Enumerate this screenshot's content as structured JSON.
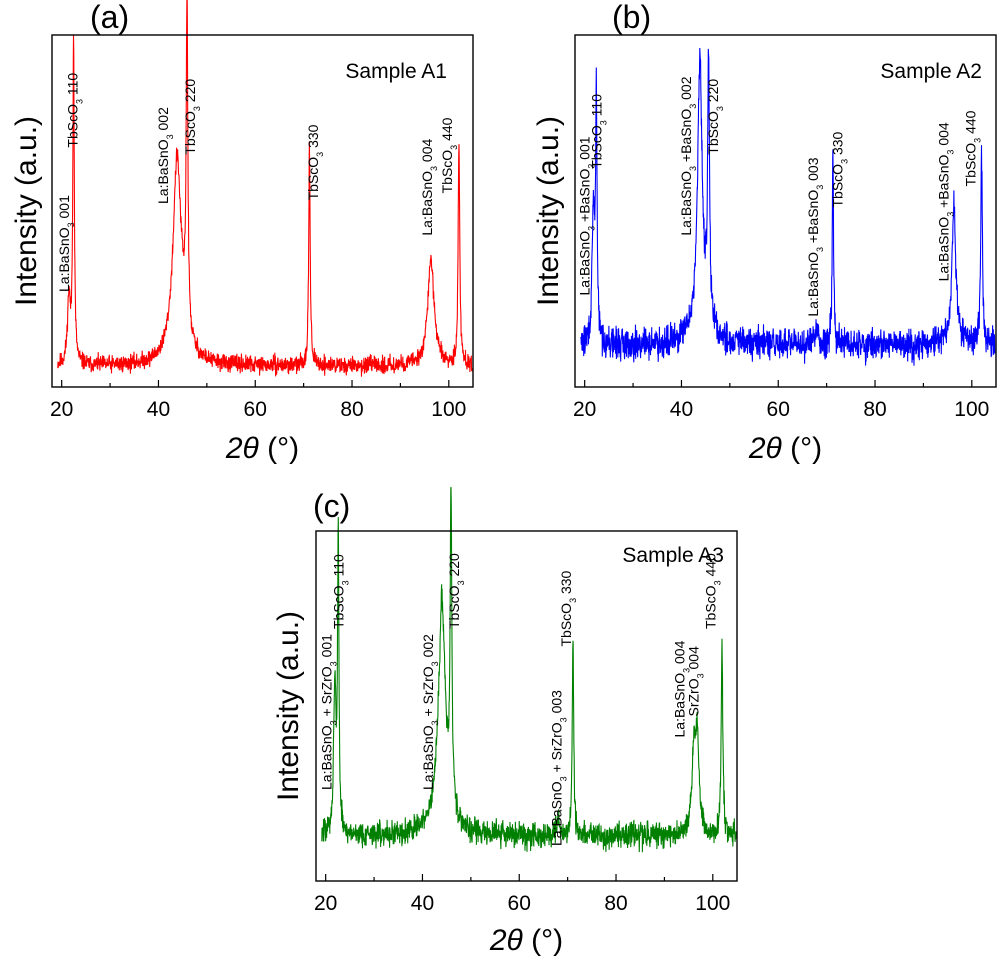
{
  "chart_data": [
    {
      "type": "line",
      "panel_tag": "(a)",
      "sample_label": "Sample A1",
      "color": "#ff0000",
      "xlabel": "2θ (°)",
      "xlabel_italic": "2θ",
      "xlabel_unit": " (°)",
      "ylabel": "Intensity (a.u.)",
      "xlim": [
        18,
        105
      ],
      "ylim": [
        0,
        1
      ],
      "xticks": [
        20,
        40,
        60,
        80,
        100
      ],
      "baseline": 0.06,
      "noise": 0.012,
      "seed": 11,
      "peaks": [
        {
          "center": 21.5,
          "height": 0.19,
          "width": 0.35
        },
        {
          "center": 22.45,
          "height": 0.92,
          "width": 0.18
        },
        {
          "center": 43.8,
          "height": 0.42,
          "width": 0.9
        },
        {
          "center": 44.2,
          "height": 0.18,
          "width": 1.6
        },
        {
          "center": 45.9,
          "height": 0.93,
          "width": 0.2
        },
        {
          "center": 71.2,
          "height": 0.63,
          "width": 0.18
        },
        {
          "center": 96.3,
          "height": 0.3,
          "width": 0.8
        },
        {
          "center": 102.1,
          "height": 0.63,
          "width": 0.2
        }
      ],
      "annotations": [
        {
          "main": "La:BaSnO",
          "sub": "3",
          "rest": " 001",
          "x": 21.5,
          "y": 0.27
        },
        {
          "main": "TbScO",
          "sub": "3",
          "rest": " 110",
          "x": 23.3,
          "y": 0.68
        },
        {
          "main": "La:BaSnO",
          "sub": "3",
          "rest": " 002",
          "x": 42.0,
          "y": 0.52
        },
        {
          "main": "TbScO",
          "sub": "3",
          "rest": " 220",
          "x": 47.5,
          "y": 0.66
        },
        {
          "main": "TbScO",
          "sub": "3",
          "rest": " 330",
          "x": 73.0,
          "y": 0.53
        },
        {
          "main": "La:BaSnO",
          "sub": "3",
          "rest": " 004",
          "x": 96.5,
          "y": 0.43
        },
        {
          "main": "TbScO",
          "sub": "3",
          "rest": " 440",
          "x": 100.7,
          "y": 0.55
        }
      ]
    },
    {
      "type": "line",
      "panel_tag": "(b)",
      "sample_label": "Sample A2",
      "color": "#0000ff",
      "xlabel": "2θ (°)",
      "xlabel_italic": "2θ",
      "xlabel_unit": " (°)",
      "ylabel": "Intensity (a.u.)",
      "xlim": [
        18,
        105
      ],
      "ylim": [
        0,
        1
      ],
      "xticks": [
        20,
        40,
        60,
        80,
        100
      ],
      "baseline": 0.12,
      "noise": 0.022,
      "seed": 29,
      "peaks": [
        {
          "center": 21.8,
          "height": 0.36,
          "width": 0.3
        },
        {
          "center": 22.4,
          "height": 0.7,
          "width": 0.18
        },
        {
          "center": 43.8,
          "height": 0.66,
          "width": 0.5
        },
        {
          "center": 44.0,
          "height": 0.15,
          "width": 1.5
        },
        {
          "center": 45.6,
          "height": 0.73,
          "width": 0.22
        },
        {
          "center": 67.9,
          "height": 0.06,
          "width": 0.3
        },
        {
          "center": 71.3,
          "height": 0.52,
          "width": 0.18
        },
        {
          "center": 96.3,
          "height": 0.39,
          "width": 0.5
        },
        {
          "center": 102.0,
          "height": 0.54,
          "width": 0.2
        }
      ],
      "annotations": [
        {
          "main": "La:BaSnO",
          "sub": "3",
          "rest": " +BaSnO",
          "sub2": "3",
          "rest2": " 001",
          "x": 21.0,
          "y": 0.26
        },
        {
          "main": "TbScO",
          "sub": "3",
          "rest": " 110",
          "x": 23.5,
          "y": 0.62
        },
        {
          "main": "La:BaSnO",
          "sub": "3",
          "rest": " +BaSnO",
          "sub2": "3",
          "rest2": " 002",
          "x": 42.0,
          "y": 0.43
        },
        {
          "main": "TbScO",
          "sub": "3",
          "rest": " 220",
          "x": 47.6,
          "y": 0.66
        },
        {
          "main": "La:BaSnO",
          "sub": "3",
          "rest": " +BaSnO",
          "sub2": "3",
          "rest2": " 003",
          "x": 68.2,
          "y": 0.2
        },
        {
          "main": "TbScO",
          "sub": "3",
          "rest": " 330",
          "x": 73.3,
          "y": 0.51
        },
        {
          "main": "La:BaSnO",
          "sub": "3",
          "rest": " +BaSnO",
          "sub2": "3",
          "rest2": " 004",
          "x": 95.2,
          "y": 0.3
        },
        {
          "main": "TbScO",
          "sub": "3",
          "rest": " 440",
          "x": 100.8,
          "y": 0.57
        }
      ]
    },
    {
      "type": "line",
      "panel_tag": "(c)",
      "sample_label": "Sample A3",
      "color": "#008000",
      "xlabel": "2θ (°)",
      "xlabel_italic": "2θ",
      "xlabel_unit": " (°)",
      "ylabel": "Intensity (a.u.)",
      "xlim": [
        18,
        105
      ],
      "ylim": [
        0,
        1
      ],
      "xticks": [
        20,
        40,
        60,
        80,
        100
      ],
      "baseline": 0.13,
      "noise": 0.018,
      "seed": 47,
      "peaks": [
        {
          "center": 21.9,
          "height": 0.43,
          "width": 0.3
        },
        {
          "center": 22.6,
          "height": 0.86,
          "width": 0.16
        },
        {
          "center": 44.0,
          "height": 0.5,
          "width": 0.7
        },
        {
          "center": 44.2,
          "height": 0.18,
          "width": 1.6
        },
        {
          "center": 45.9,
          "height": 0.87,
          "width": 0.2
        },
        {
          "center": 68.0,
          "height": 0.05,
          "width": 0.3
        },
        {
          "center": 71.1,
          "height": 0.56,
          "width": 0.18
        },
        {
          "center": 96.1,
          "height": 0.24,
          "width": 0.45
        },
        {
          "center": 96.8,
          "height": 0.25,
          "width": 0.4
        },
        {
          "center": 101.9,
          "height": 0.54,
          "width": 0.2
        }
      ],
      "annotations": [
        {
          "main": "La:BaSnO",
          "sub": "3",
          "rest": " + SrZrO",
          "sub2": "3",
          "rest2": " 001",
          "x": 21.2,
          "y": 0.26
        },
        {
          "main": "TbScO",
          "sub": "3",
          "rest": " 110",
          "x": 23.7,
          "y": 0.72
        },
        {
          "main": "La:BaSnO",
          "sub": "3",
          "rest": " + SrZrO",
          "sub2": "3",
          "rest2": " 002",
          "x": 42.2,
          "y": 0.26
        },
        {
          "main": "TbScO",
          "sub": "3",
          "rest": " 220",
          "x": 47.6,
          "y": 0.72
        },
        {
          "main": "La:BaSnO",
          "sub": "3",
          "rest": " + SrZrO",
          "sub2": "3",
          "rest2": " 003",
          "x": 68.7,
          "y": 0.1
        },
        {
          "main": "TbScO",
          "sub": "3",
          "rest": " 330",
          "x": 70.7,
          "y": 0.67
        },
        {
          "main": "La:BaSnO",
          "sub": "3",
          "rest": " 004",
          "x": 94.2,
          "y": 0.41
        },
        {
          "main": "SrZrO",
          "sub": "3",
          "rest": " 004",
          "x": 97.0,
          "y": 0.47
        },
        {
          "main": "TbScO",
          "sub": "3",
          "rest": " 440",
          "x": 100.6,
          "y": 0.72
        }
      ]
    }
  ]
}
